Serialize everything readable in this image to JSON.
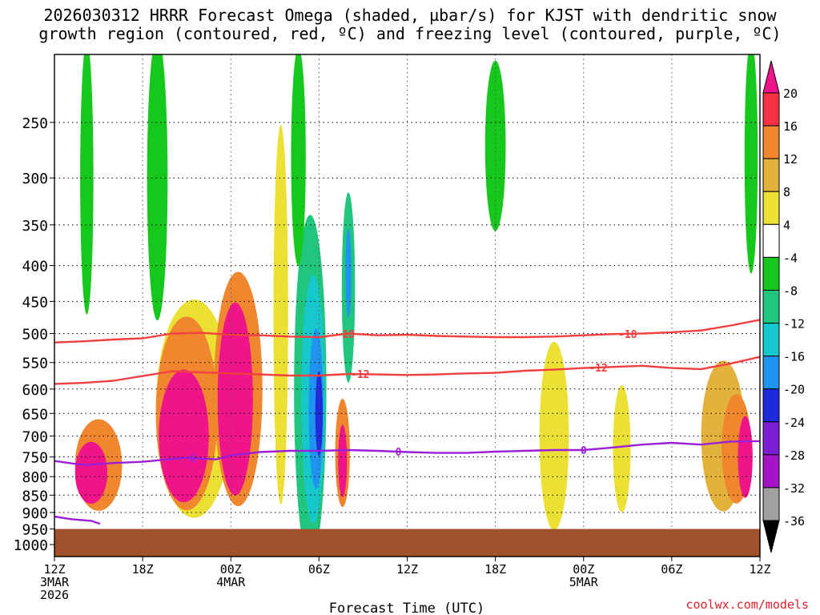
{
  "title_line1": "2026030312 HRRR Forecast Omega (shaded, µbar/s) for KJST with dendritic snow",
  "title_line2": "growth region (contoured, red, ºC) and freezing level (contoured, purple, ºC)",
  "credit": "coolwx.com/models",
  "chart_data": {
    "type": "heatmap",
    "subtype": "time-height cross-section",
    "title": "2026030312 HRRR Forecast Omega (shaded, µbar/s) for KJST with dendritic snow growth region (contoured, red, ºC) and freezing level (contoured, purple, ºC)",
    "xlabel": "Forecast Time (UTC)",
    "ylabel": "",
    "x_hours_range": [
      0,
      48
    ],
    "y_pressure_range_hpa": [
      200,
      1040
    ],
    "x_ticks": [
      {
        "hour": 0,
        "lines": [
          "12Z",
          "3MAR",
          "2026"
        ]
      },
      {
        "hour": 6,
        "lines": [
          "18Z"
        ]
      },
      {
        "hour": 12,
        "lines": [
          "00Z",
          "4MAR"
        ]
      },
      {
        "hour": 18,
        "lines": [
          "06Z"
        ]
      },
      {
        "hour": 24,
        "lines": [
          "12Z"
        ]
      },
      {
        "hour": 30,
        "lines": [
          "18Z"
        ]
      },
      {
        "hour": 36,
        "lines": [
          "00Z",
          "5MAR"
        ]
      },
      {
        "hour": 42,
        "lines": [
          "06Z"
        ]
      },
      {
        "hour": 48,
        "lines": [
          "12Z"
        ]
      }
    ],
    "y_ticks": [
      "250",
      "300",
      "350",
      "400",
      "450",
      "500",
      "550",
      "600",
      "650",
      "700",
      "750",
      "800",
      "850",
      "900",
      "950",
      "1000"
    ],
    "y_tick_values": [
      250,
      300,
      350,
      400,
      450,
      500,
      550,
      600,
      650,
      700,
      750,
      800,
      850,
      900,
      950,
      1000
    ],
    "colorbar": {
      "labels": [
        "20",
        "16",
        "12",
        "8",
        "4",
        "-4",
        "-8",
        "-12",
        "-16",
        "-20",
        "-24",
        "-28",
        "-32",
        "-36"
      ],
      "bins": [
        {
          "from": 20,
          "to": 24,
          "color": "#f0148a"
        },
        {
          "from": 16,
          "to": 20,
          "color": "#f53244"
        },
        {
          "from": 12,
          "to": 16,
          "color": "#f0862d"
        },
        {
          "from": 8,
          "to": 12,
          "color": "#e2b23c"
        },
        {
          "from": 4,
          "to": 8,
          "color": "#ede034"
        },
        {
          "from": -4,
          "to": 4,
          "color": "#ffffff"
        },
        {
          "from": -8,
          "to": -4,
          "color": "#16c81b"
        },
        {
          "from": -12,
          "to": -8,
          "color": "#21c67e"
        },
        {
          "from": -16,
          "to": -12,
          "color": "#16c8cc"
        },
        {
          "from": -20,
          "to": -16,
          "color": "#1f93f0"
        },
        {
          "from": -24,
          "to": -20,
          "color": "#1f29de"
        },
        {
          "from": -28,
          "to": -24,
          "color": "#7a1fd3"
        },
        {
          "from": -32,
          "to": -28,
          "color": "#a415c8"
        },
        {
          "from": -36,
          "to": -32,
          "color": "#a0a0a0"
        }
      ],
      "over_color": "#f0148a",
      "under_color": "#000000"
    },
    "omega_features": [
      {
        "shape": "ellipse",
        "t": 3,
        "p": 770,
        "dt": 3.2,
        "dp": 230,
        "value": 12
      },
      {
        "shape": "ellipse",
        "t": 2.5,
        "p": 790,
        "dt": 2.2,
        "dp": 160,
        "value": 20
      },
      {
        "shape": "ellipse",
        "t": 9.5,
        "p": 640,
        "dt": 5.2,
        "dp": 440,
        "value": 6
      },
      {
        "shape": "ellipse",
        "t": 9.0,
        "p": 650,
        "dt": 4.2,
        "dp": 400,
        "value": 14
      },
      {
        "shape": "ellipse",
        "t": 8.8,
        "p": 700,
        "dt": 3.4,
        "dp": 300,
        "value": 20
      },
      {
        "shape": "ellipse",
        "t": 12.5,
        "p": 600,
        "dt": 3.3,
        "dp": 440,
        "value": 12
      },
      {
        "shape": "ellipse",
        "t": 12.3,
        "p": 620,
        "dt": 2.4,
        "dp": 380,
        "value": 20
      },
      {
        "shape": "ellipse",
        "t": 15.4,
        "p": 470,
        "dt": 1.0,
        "dp": 520,
        "value": 6
      },
      {
        "shape": "ellipse",
        "t": 19.6,
        "p": 740,
        "dt": 1.0,
        "dp": 260,
        "value": 14
      },
      {
        "shape": "ellipse",
        "t": 19.6,
        "p": 760,
        "dt": 0.6,
        "dp": 180,
        "value": 20
      },
      {
        "shape": "ellipse",
        "t": 17.4,
        "p": 600,
        "dt": 2.2,
        "dp": 620,
        "value": -10
      },
      {
        "shape": "ellipse",
        "t": 17.6,
        "p": 620,
        "dt": 1.6,
        "dp": 480,
        "value": -14
      },
      {
        "shape": "ellipse",
        "t": 17.8,
        "p": 640,
        "dt": 1.0,
        "dp": 330,
        "value": -18
      },
      {
        "shape": "ellipse",
        "t": 18.0,
        "p": 650,
        "dt": 0.5,
        "dp": 180,
        "value": -22
      },
      {
        "shape": "ellipse",
        "t": 20.0,
        "p": 430,
        "dt": 0.9,
        "dp": 260,
        "value": -12
      },
      {
        "shape": "ellipse",
        "t": 20.0,
        "p": 410,
        "dt": 0.4,
        "dp": 120,
        "value": -20
      },
      {
        "shape": "ellipse",
        "t": 2.2,
        "p": 300,
        "dt": 0.9,
        "dp": 380,
        "value": -6
      },
      {
        "shape": "ellipse",
        "t": 7.0,
        "p": 300,
        "dt": 1.4,
        "dp": 420,
        "value": -6
      },
      {
        "shape": "ellipse",
        "t": 16.6,
        "p": 280,
        "dt": 1.0,
        "dp": 260,
        "value": -6
      },
      {
        "shape": "ellipse",
        "t": 30.0,
        "p": 270,
        "dt": 1.4,
        "dp": 160,
        "value": -6
      },
      {
        "shape": "ellipse",
        "t": 47.4,
        "p": 280,
        "dt": 0.9,
        "dp": 300,
        "value": -6
      },
      {
        "shape": "ellipse",
        "t": 34.0,
        "p": 700,
        "dt": 2.0,
        "dp": 420,
        "value": 6
      },
      {
        "shape": "ellipse",
        "t": 38.6,
        "p": 730,
        "dt": 1.2,
        "dp": 300,
        "value": 6
      },
      {
        "shape": "ellipse",
        "t": 45.5,
        "p": 700,
        "dt": 3.0,
        "dp": 340,
        "value": 8
      },
      {
        "shape": "ellipse",
        "t": 46.4,
        "p": 730,
        "dt": 2.0,
        "dp": 260,
        "value": 14
      },
      {
        "shape": "ellipse",
        "t": 47.0,
        "p": 750,
        "dt": 1.0,
        "dp": 200,
        "value": 20
      }
    ],
    "contours": [
      {
        "kind": "dendritic",
        "label": "-18",
        "color": "#f23f3f",
        "t": [
          0,
          2,
          4,
          6,
          8,
          10,
          12,
          14,
          16,
          18,
          20,
          22,
          24,
          26,
          28,
          30,
          32,
          34,
          36,
          38,
          40,
          42,
          44,
          46,
          48
        ],
        "p": [
          515,
          513,
          510,
          508,
          500,
          499,
          502,
          503,
          505,
          506,
          500,
          503,
          502,
          504,
          505,
          506,
          506,
          505,
          503,
          501,
          500,
          498,
          495,
          487,
          478
        ],
        "label_hours": [
          19.8,
          39.0
        ]
      },
      {
        "kind": "dendritic",
        "label": "-12",
        "color": "#f23f3f",
        "t": [
          0,
          2,
          4,
          6,
          8,
          10,
          12,
          14,
          16,
          18,
          20,
          22,
          24,
          26,
          28,
          30,
          32,
          34,
          36,
          38,
          40,
          42,
          44,
          46,
          48
        ],
        "p": [
          590,
          588,
          584,
          575,
          566,
          568,
          570,
          572,
          574,
          574,
          571,
          572,
          573,
          572,
          570,
          569,
          565,
          563,
          560,
          558,
          556,
          560,
          562,
          552,
          540
        ],
        "label_hours": [
          20.8,
          37.0
        ]
      },
      {
        "kind": "freezing",
        "label": "0",
        "color": "#9b1fd8",
        "t": [
          0,
          2,
          4,
          6,
          8,
          9,
          10,
          11,
          12,
          14,
          16,
          18,
          20,
          22,
          24,
          26,
          28,
          30,
          32,
          34,
          36,
          38,
          40,
          42,
          44,
          46,
          48
        ],
        "p": [
          760,
          770,
          765,
          762,
          755,
          752,
          754,
          756,
          746,
          738,
          735,
          735,
          733,
          735,
          738,
          740,
          740,
          737,
          735,
          733,
          733,
          727,
          720,
          716,
          720,
          713,
          712
        ],
        "label_hours": [
          9.4,
          23.4,
          36.0
        ]
      },
      {
        "kind": "freezing",
        "label": "",
        "color": "#9b1fd8",
        "t": [
          0,
          1.2,
          2.5,
          3.1
        ],
        "p": [
          912,
          920,
          925,
          934
        ],
        "label_hours": []
      }
    ],
    "terrain": {
      "top_p_hpa": 950,
      "color": "#a0522d"
    }
  }
}
